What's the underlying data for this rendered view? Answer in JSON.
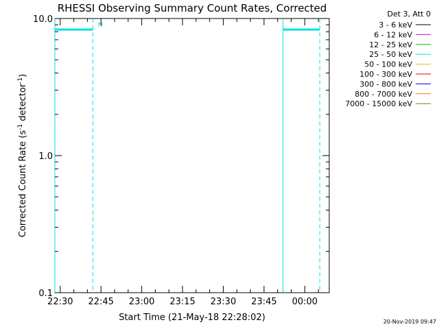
{
  "chart_data": {
    "type": "line",
    "title": "RHESSI Observing Summary Count Rates, Corrected",
    "xlabel": "Start Time (21-May-18 22:28:02)",
    "ylabel_parts": [
      "Corrected Count Rate (s",
      "-1",
      " detector",
      "-1",
      ")"
    ],
    "y_scale": "log",
    "ylim": [
      0.1,
      10.0
    ],
    "y_ticks": [
      {
        "v": 0.1,
        "label": "0.1"
      },
      {
        "v": 1.0,
        "label": "1.0"
      },
      {
        "v": 10.0,
        "label": "10.0"
      }
    ],
    "x_range_minutes": [
      "22:28:02",
      "00:09:00"
    ],
    "x_ticks": [
      "22:30",
      "22:45",
      "23:00",
      "23:15",
      "23:30",
      "23:45",
      "00:00"
    ],
    "legend_header": "Det 3, Att 0",
    "legend": [
      {
        "label": "3 - 6 keV",
        "color": "#000000"
      },
      {
        "label": "6 - 12 keV",
        "color": "#e000e0"
      },
      {
        "label": "12 - 25 keV",
        "color": "#00c000"
      },
      {
        "label": "25 - 50 keV",
        "color": "#00e0e0"
      },
      {
        "label": "50 - 100 keV",
        "color": "#e0c000"
      },
      {
        "label": "100 - 300 keV",
        "color": "#e00000"
      },
      {
        "label": "300 - 800 keV",
        "color": "#0000e0"
      },
      {
        "label": "800 - 7000 keV",
        "color": "#f08000"
      },
      {
        "label": "7000 - 15000 keV",
        "color": "#808000"
      }
    ],
    "series": [
      {
        "name": "25 - 50 keV",
        "color": "#00e0e0",
        "segments": [
          {
            "x": [
              "22:28:02",
              "22:42:00"
            ],
            "y": 8.3
          },
          {
            "x": [
              "23:52:00",
              "00:05:30"
            ],
            "y": 8.3
          }
        ]
      }
    ],
    "markers": [
      {
        "type": "solid",
        "x": "22:28:02",
        "color": "#00e0e0"
      },
      {
        "type": "dashed",
        "x": "22:42:00",
        "color": "#00e0e0"
      },
      {
        "type": "solid",
        "x": "23:52:00",
        "color": "#00e0e0"
      },
      {
        "type": "dashed",
        "x": "00:05:30",
        "color": "#00e0e0"
      }
    ],
    "annotations": [
      {
        "text": "N",
        "x": "22:44:00",
        "y": 9.0,
        "color": "#00e0e0"
      }
    ]
  },
  "footer": {
    "timestamp": "20-Nov-2019 09:47"
  }
}
